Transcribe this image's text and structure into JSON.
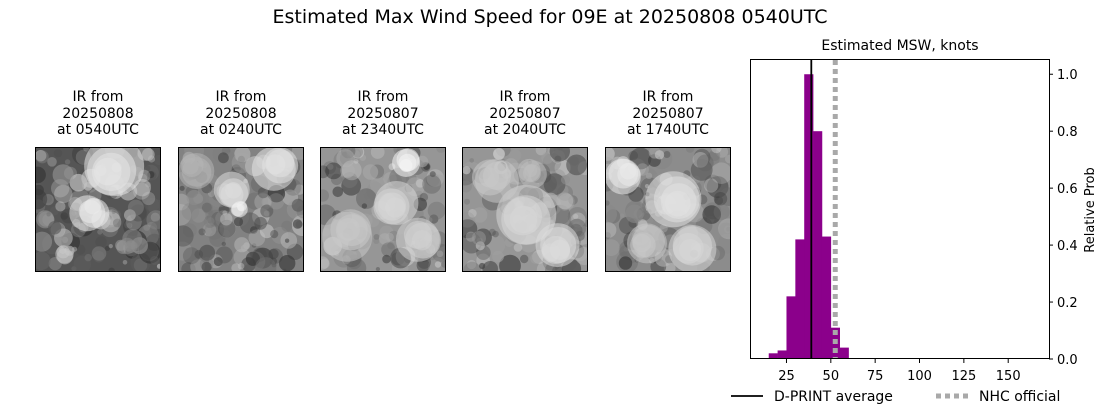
{
  "figure": {
    "title": "Estimated Max Wind Speed for 09E at 20250808 0540UTC"
  },
  "ir_panels": [
    {
      "line1": "IR from",
      "date": "20250808",
      "time": "at 0540UTC"
    },
    {
      "line1": "IR from",
      "date": "20250808",
      "time": "at 0240UTC"
    },
    {
      "line1": "IR from",
      "date": "20250807",
      "time": "at 2340UTC"
    },
    {
      "line1": "IR from",
      "date": "20250807",
      "time": "at 2040UTC"
    },
    {
      "line1": "IR from",
      "date": "20250807",
      "time": "at 1740UTC"
    }
  ],
  "chart_data": {
    "type": "bar",
    "title": "Estimated MSW, knots",
    "xlabel": "",
    "ylabel": "Relative Prob",
    "xlim": [
      5,
      173
    ],
    "ylim": [
      0,
      1.05
    ],
    "x_ticks": [
      25,
      50,
      75,
      100,
      125,
      150
    ],
    "y_ticks": [
      0.0,
      0.2,
      0.4,
      0.6,
      0.8,
      1.0
    ],
    "y_axis_side": "right",
    "bar_color": "#8b008b",
    "bin_width": 5,
    "bins": [
      {
        "x0": 15,
        "value": 0.02
      },
      {
        "x0": 20,
        "value": 0.03
      },
      {
        "x0": 25,
        "value": 0.22
      },
      {
        "x0": 30,
        "value": 0.42
      },
      {
        "x0": 35,
        "value": 1.0
      },
      {
        "x0": 40,
        "value": 0.8
      },
      {
        "x0": 45,
        "value": 0.43
      },
      {
        "x0": 50,
        "value": 0.11
      },
      {
        "x0": 55,
        "value": 0.04
      },
      {
        "x0": 60,
        "value": 0.003
      },
      {
        "x0": 65,
        "value": 0.002
      },
      {
        "x0": 70,
        "value": 0.002
      },
      {
        "x0": 75,
        "value": 0.002
      },
      {
        "x0": 80,
        "value": 0.002
      },
      {
        "x0": 85,
        "value": 0.002
      },
      {
        "x0": 90,
        "value": 0.002
      },
      {
        "x0": 95,
        "value": 0.002
      },
      {
        "x0": 100,
        "value": 0.002
      },
      {
        "x0": 105,
        "value": 0.002
      },
      {
        "x0": 110,
        "value": 0.002
      },
      {
        "x0": 115,
        "value": 0.002
      },
      {
        "x0": 120,
        "value": 0.002
      },
      {
        "x0": 125,
        "value": 0.002
      },
      {
        "x0": 130,
        "value": 0.002
      },
      {
        "x0": 135,
        "value": 0.002
      },
      {
        "x0": 140,
        "value": 0.002
      },
      {
        "x0": 145,
        "value": 0.002
      },
      {
        "x0": 150,
        "value": 0.002
      },
      {
        "x0": 155,
        "value": 0.002
      },
      {
        "x0": 160,
        "value": 0.002
      },
      {
        "x0": 165,
        "value": 0.002
      }
    ],
    "lines": [
      {
        "name": "D-PRINT average",
        "x": 39,
        "color": "#000000",
        "style": "solid"
      },
      {
        "name": "NHC official",
        "x": 52.5,
        "color": "#a9a9a9",
        "style": "dotted"
      }
    ],
    "legend_placement": "bottom"
  }
}
